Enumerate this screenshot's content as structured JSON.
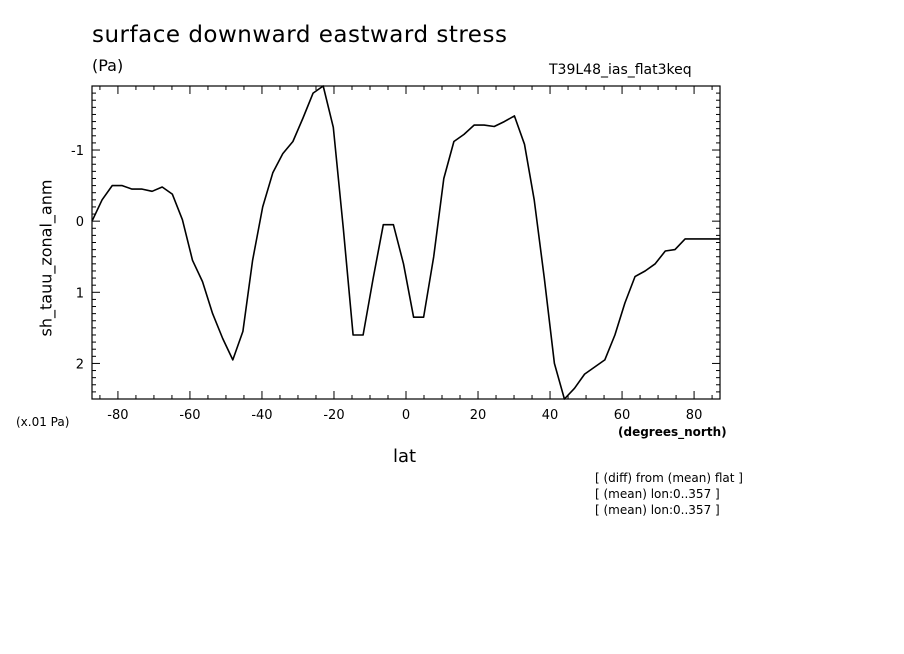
{
  "chart_data": {
    "type": "line",
    "title": "surface downward eastward stress",
    "units": "(Pa)",
    "run_label": "T39L48_ias_flat3keq",
    "scale_label": "(x.01 Pa)",
    "xlabel": "lat",
    "xunits": "(degrees_north)",
    "ylabel": "sh_tauu_zonal_anm",
    "notes": [
      "[ (diff) from (mean) flat ]",
      "[ (mean) lon:0..357 ]",
      "[ (mean) lon:0..357 ]"
    ],
    "xlim": [
      -87.2,
      87.2
    ],
    "ylim": [
      2.5,
      -1.9
    ],
    "y_inverted": true,
    "x_ticks": [
      -80,
      -60,
      -40,
      -20,
      0,
      20,
      40,
      60,
      80
    ],
    "x_tick_labels": [
      "-80",
      "-60",
      "-40",
      "-20",
      "0",
      "20",
      "40",
      "60",
      "80"
    ],
    "y_ticks": [
      -1,
      0,
      1,
      2
    ],
    "y_tick_labels": [
      "-1",
      "0",
      "1",
      "2"
    ],
    "grid": false,
    "series": [
      {
        "x": [
          -87.2,
          -84.4,
          -81.6,
          -78.8,
          -76.1,
          -73.3,
          -70.5,
          -67.7,
          -64.9,
          -62.1,
          -59.3,
          -56.5,
          -53.7,
          -50.9,
          -48.1,
          -45.3,
          -42.6,
          -39.8,
          -37.0,
          -34.2,
          -31.4,
          -28.6,
          -25.8,
          -23.0,
          -20.2,
          -17.4,
          -14.7,
          -11.9,
          -9.1,
          -6.3,
          -3.5,
          -0.7,
          2.1,
          4.9,
          7.7,
          10.5,
          13.3,
          16.1,
          18.9,
          21.7,
          24.5,
          27.3,
          30.1,
          32.9,
          35.6,
          38.4,
          41.2,
          44.0,
          46.8,
          49.6,
          52.4,
          55.2,
          58.0,
          60.8,
          63.6,
          66.4,
          69.2,
          72.0,
          74.7,
          77.5,
          80.3,
          83.1,
          85.9,
          87.2
        ],
        "y": [
          0.0,
          -0.3,
          -0.5,
          -0.5,
          -0.45,
          -0.45,
          -0.42,
          -0.48,
          -0.38,
          -0.02,
          0.55,
          0.85,
          1.3,
          1.65,
          1.95,
          1.55,
          0.55,
          -0.2,
          -0.68,
          -0.95,
          -1.12,
          -1.45,
          -1.8,
          -1.95,
          -1.32,
          0.1,
          1.6,
          1.6,
          0.8,
          0.05,
          0.05,
          0.6,
          1.35,
          1.35,
          0.5,
          -0.6,
          -1.12,
          -1.22,
          -1.35,
          -1.35,
          -1.33,
          -1.4,
          -1.48,
          -1.08,
          -0.3,
          0.8,
          2.0,
          2.5,
          2.35,
          2.15,
          2.05,
          1.95,
          1.6,
          1.15,
          0.78,
          0.7,
          0.6,
          0.42,
          0.4,
          0.25,
          0.25,
          0.25,
          0.25,
          0.25
        ]
      }
    ]
  }
}
